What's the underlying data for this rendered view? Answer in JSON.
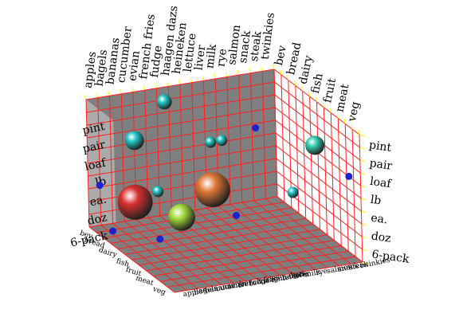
{
  "chart_data": {
    "type": "scatter",
    "x_axis_categories": [
      "apples",
      "bagels",
      "bananas",
      "cucumber",
      "evian",
      "french fries",
      "fudge",
      "haagen dazs",
      "heineken",
      "lettuce",
      "liver",
      "milk",
      "rye",
      "salmon",
      "snack",
      "steak",
      "twinkies"
    ],
    "y_axis_categories": [
      "bev",
      "bread",
      "dairy",
      "fish",
      "fruit",
      "meat",
      "veg"
    ],
    "z_axis_categories": [
      "6-pack",
      "doz",
      "ea.",
      "lb",
      "loaf",
      "pair",
      "pint"
    ],
    "grid": true,
    "colors": {
      "wall": "#7f7f7f",
      "grid": "#ff2020",
      "grid_edge": "#ffff00",
      "point": "#2020cc"
    },
    "bubbles": [
      {
        "x": "salmon",
        "y": "veg",
        "z": "pint",
        "size": 2,
        "color": "#33d0b0"
      },
      {
        "x": "apples",
        "y": "fish",
        "z": "pint",
        "size": 2,
        "color": "#22c8c8"
      },
      {
        "x": "fudge",
        "y": "bev",
        "z": "pint",
        "size": 1.5,
        "color": "#22c8c8"
      },
      {
        "x": "bananas",
        "y": "fish",
        "z": "lb",
        "size": 1,
        "color": "#22c8c8"
      },
      {
        "x": "lettuce",
        "y": "bread",
        "z": "loaf",
        "size": 1,
        "color": "#22c8c8"
      },
      {
        "x": "liver",
        "y": "bread",
        "z": "loaf",
        "size": 1,
        "color": "#22c8c8"
      },
      {
        "x": "cucumber",
        "y": "fruit",
        "z": "ea.",
        "size": 3,
        "color": "#a4dc3c"
      },
      {
        "x": "rye",
        "y": "meat",
        "z": "lb",
        "size": 1,
        "color": "#22c8c8"
      },
      {
        "x": "twinkies",
        "y": "veg",
        "z": "loaf",
        "size": 0.5,
        "color": "#2020cc"
      },
      {
        "x": "bagels",
        "y": "dairy",
        "z": "ea.",
        "size": 4,
        "color": "#d83030"
      },
      {
        "x": "heineken",
        "y": "dairy",
        "z": "ea.",
        "size": 4,
        "color": "#e07838"
      },
      {
        "x": "apples",
        "y": "bev",
        "z": "ea.",
        "size": 0.5,
        "color": "#2020cc"
      },
      {
        "x": "apples",
        "y": "bread",
        "z": "6-pack",
        "size": 0.5,
        "color": "#2020cc"
      },
      {
        "x": "bagels",
        "y": "fruit",
        "z": "doz",
        "size": 0.5,
        "color": "#2020cc"
      },
      {
        "x": "lettuce",
        "y": "fish",
        "z": "doz",
        "size": 0.5,
        "color": "#2020cc"
      },
      {
        "x": "rye",
        "y": "dairy",
        "z": "pair",
        "size": 0.5,
        "color": "#2020cc"
      }
    ]
  }
}
